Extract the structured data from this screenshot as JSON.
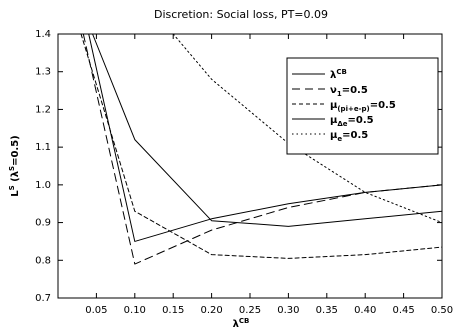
{
  "chart_data": {
    "type": "line",
    "title": "Discretion: Social loss, PT=0.09",
    "xlabel": "λ^CB",
    "ylabel": "L^S (λ^S=0.5)",
    "x_ticks": [
      0.05,
      0.1,
      0.15,
      0.2,
      0.25,
      0.3,
      0.35,
      0.4,
      0.45,
      0.5
    ],
    "x_tick_labels": [
      "0.05",
      "0.10",
      "0.15",
      "0.20",
      "0.25",
      "0.30",
      "0.35",
      "0.40",
      "0.45",
      "0.50"
    ],
    "y_ticks": [
      0.7,
      0.8,
      0.9,
      1.0,
      1.1,
      1.2,
      1.3,
      1.4
    ],
    "y_tick_labels": [
      "0.7",
      "0.8",
      "0.9",
      "1.0",
      "1.1",
      "1.2",
      "1.3",
      "1.4"
    ],
    "xlim": [
      0.0,
      0.5
    ],
    "ylim": [
      0.7,
      1.4
    ],
    "grid": false,
    "legend_position": "top-right",
    "series": [
      {
        "name": "λ^CB",
        "dash": "solid",
        "color": "#000000",
        "x": [
          0.045,
          0.1,
          0.2,
          0.3,
          0.4,
          0.5
        ],
        "y": [
          1.4,
          1.12,
          0.905,
          0.89,
          0.91,
          0.93
        ]
      },
      {
        "name": "ν_1=0.5",
        "dash": "longdash",
        "color": "#000000",
        "x": [
          0.033,
          0.1,
          0.2,
          0.3,
          0.4,
          0.5
        ],
        "y": [
          1.4,
          0.79,
          0.88,
          0.94,
          0.98,
          1.0
        ]
      },
      {
        "name": "μ_(pi+e-p)=0.5",
        "dash": "shortdash",
        "color": "#000000",
        "x": [
          0.03,
          0.1,
          0.2,
          0.3,
          0.4,
          0.5
        ],
        "y": [
          1.4,
          0.93,
          0.815,
          0.805,
          0.815,
          0.835
        ]
      },
      {
        "name": "μ_Δe=0.5",
        "dash": "solid",
        "color": "#000000",
        "x": [
          0.04,
          0.1,
          0.2,
          0.3,
          0.4,
          0.5
        ],
        "y": [
          1.4,
          0.85,
          0.91,
          0.95,
          0.98,
          1.0
        ]
      },
      {
        "name": "μ_e=0.5",
        "dash": "dotted",
        "color": "#000000",
        "x": [
          0.15,
          0.2,
          0.3,
          0.4,
          0.45,
          0.5
        ],
        "y": [
          1.4,
          1.28,
          1.11,
          0.98,
          0.94,
          0.9
        ]
      }
    ]
  }
}
